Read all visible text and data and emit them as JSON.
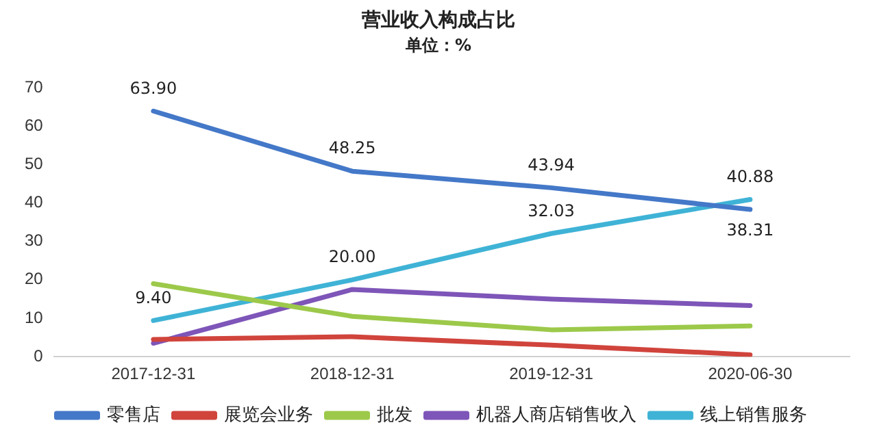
{
  "chart_data": {
    "type": "line",
    "title": "营业收入构成占比",
    "subtitle": "单位：%",
    "categories": [
      "2017-12-31",
      "2018-12-31",
      "2019-12-31",
      "2020-06-30"
    ],
    "series": [
      {
        "name": "零售店",
        "color": "#4478c8",
        "values": [
          63.9,
          48.25,
          43.94,
          38.31
        ],
        "value_labels": [
          "63.90",
          "48.25",
          "43.94",
          "38.31"
        ]
      },
      {
        "name": "展览会业务",
        "color": "#d0443c",
        "values": [
          4.5,
          5.2,
          3,
          0.5
        ]
      },
      {
        "name": "批发",
        "color": "#9cc94a",
        "values": [
          19,
          10.5,
          7,
          8
        ]
      },
      {
        "name": "机器人商店销售收入",
        "color": "#7e55b8",
        "values": [
          3.5,
          17.5,
          15,
          13.3
        ]
      },
      {
        "name": "线上销售服务",
        "color": "#3fb3d6",
        "values": [
          9.4,
          20,
          32.03,
          40.88
        ],
        "value_labels": [
          "9.40",
          "20.00",
          "32.03",
          "40.88"
        ]
      }
    ],
    "ylim": [
      0,
      70
    ],
    "yticks": [
      0,
      10,
      20,
      30,
      40,
      50,
      60,
      70
    ],
    "grid": false,
    "legend": "bottom",
    "marker": "none",
    "line_style": "solid"
  }
}
